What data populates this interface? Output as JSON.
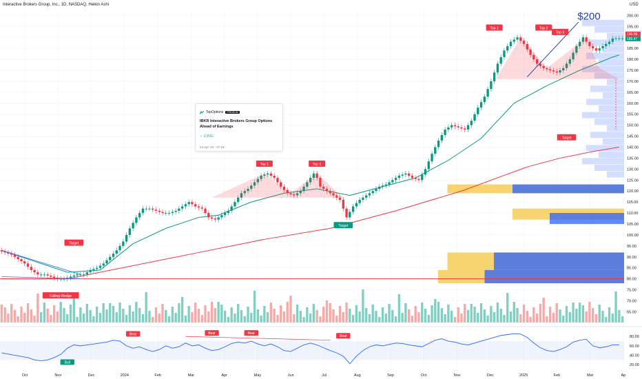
{
  "header": {
    "title": "Interactive Brokers Group, Inc., 1D, NASDAQ, Heikin Ashi",
    "currency": "USD"
  },
  "idea_card": {
    "brand": "TopOptions",
    "badge": "PREMIUM",
    "title": "IBKR Interactive Brokers Group  Options Ahead of Earnings",
    "direction": "LONG",
    "date": "13 Apr '24 · 07:18"
  },
  "chart_data": [
    {
      "type": "candlestick",
      "title": "Interactive Brokers Group, Inc., 1D, NASDAQ, Heikin Ashi",
      "symbol": "IBKR",
      "x_ticks": [
        "Oct",
        "Nov",
        "Dec",
        "2024",
        "Feb",
        "Mar",
        "Apr",
        "May",
        "Jun",
        "Jul",
        "Aug",
        "Sep",
        "Oct",
        "Nov",
        "Dec",
        "2025",
        "Feb",
        "Mar",
        "Ap"
      ],
      "y_ticks": [
        65,
        70,
        75,
        80,
        85,
        90,
        95,
        100,
        105,
        110,
        115,
        120,
        125,
        130,
        135,
        140,
        145,
        150,
        155,
        160,
        165,
        170,
        175,
        180,
        185,
        190,
        195,
        200
      ],
      "ylim": [
        62,
        202
      ],
      "price_path": [
        [
          0,
          93
        ],
        [
          4,
          91
        ],
        [
          8,
          87
        ],
        [
          10,
          84
        ],
        [
          12,
          82
        ],
        [
          14,
          82
        ],
        [
          16,
          81
        ],
        [
          18,
          80
        ],
        [
          20,
          80
        ],
        [
          22,
          81
        ],
        [
          24,
          82
        ],
        [
          26,
          82
        ],
        [
          28,
          84
        ],
        [
          30,
          85
        ],
        [
          32,
          87
        ],
        [
          34,
          90
        ],
        [
          36,
          93
        ],
        [
          38,
          97
        ],
        [
          40,
          103
        ],
        [
          42,
          108
        ],
        [
          44,
          112
        ],
        [
          46,
          112
        ],
        [
          48,
          111
        ],
        [
          50,
          110
        ],
        [
          52,
          110
        ],
        [
          54,
          111
        ],
        [
          56,
          113
        ],
        [
          58,
          115
        ],
        [
          60,
          113
        ],
        [
          62,
          112
        ],
        [
          64,
          108
        ],
        [
          66,
          107
        ],
        [
          68,
          109
        ],
        [
          70,
          111
        ],
        [
          72,
          115
        ],
        [
          74,
          119
        ],
        [
          76,
          121
        ],
        [
          78,
          124
        ],
        [
          80,
          127
        ],
        [
          82,
          128
        ],
        [
          84,
          126
        ],
        [
          86,
          122
        ],
        [
          88,
          119
        ],
        [
          90,
          118
        ],
        [
          92,
          120
        ],
        [
          94,
          124
        ],
        [
          96,
          128
        ],
        [
          97,
          126
        ],
        [
          98,
          122
        ],
        [
          100,
          120
        ],
        [
          102,
          118
        ],
        [
          104,
          116
        ],
        [
          106,
          108
        ],
        [
          108,
          113
        ],
        [
          110,
          116
        ],
        [
          112,
          118
        ],
        [
          114,
          120
        ],
        [
          116,
          122
        ],
        [
          118,
          123
        ],
        [
          120,
          125
        ],
        [
          122,
          127
        ],
        [
          124,
          128
        ],
        [
          126,
          126
        ],
        [
          128,
          125
        ],
        [
          130,
          130
        ],
        [
          132,
          137
        ],
        [
          134,
          143
        ],
        [
          136,
          148
        ],
        [
          138,
          150
        ],
        [
          140,
          149
        ],
        [
          142,
          148
        ],
        [
          144,
          152
        ],
        [
          146,
          158
        ],
        [
          148,
          163
        ],
        [
          150,
          170
        ],
        [
          152,
          178
        ],
        [
          154,
          184
        ],
        [
          156,
          188
        ],
        [
          158,
          190
        ],
        [
          160,
          187
        ],
        [
          162,
          182
        ],
        [
          164,
          178
        ],
        [
          166,
          176
        ],
        [
          168,
          175
        ],
        [
          170,
          174
        ],
        [
          172,
          176
        ],
        [
          174,
          180
        ],
        [
          176,
          186
        ],
        [
          178,
          190
        ],
        [
          180,
          186
        ],
        [
          182,
          184
        ],
        [
          184,
          186
        ],
        [
          186,
          188
        ],
        [
          187,
          189.5
        ]
      ],
      "last_price": 189.5,
      "moving_averages": [
        {
          "color": "#089981",
          "path": [
            [
              0,
              93
            ],
            [
              10,
              88
            ],
            [
              20,
              83
            ],
            [
              30,
              84
            ],
            [
              40,
              96
            ],
            [
              50,
              103
            ],
            [
              60,
              108
            ],
            [
              66,
              109
            ],
            [
              76,
              115
            ],
            [
              86,
              119
            ],
            [
              96,
              121
            ],
            [
              106,
              118
            ],
            [
              116,
              122
            ],
            [
              126,
              126
            ],
            [
              136,
              134
            ],
            [
              146,
              144
            ],
            [
              156,
              160
            ],
            [
              166,
              168
            ],
            [
              176,
              175
            ],
            [
              186,
              181
            ],
            [
              188,
              182
            ]
          ]
        },
        {
          "color": "#f23645",
          "path": [
            [
              0,
              80
            ],
            [
              20,
              80
            ],
            [
              40,
              86
            ],
            [
              60,
              92
            ],
            [
              80,
              98
            ],
            [
              100,
              103
            ],
            [
              120,
              111
            ],
            [
              140,
              120
            ],
            [
              160,
              131
            ],
            [
              170,
              135
            ],
            [
              180,
              138
            ],
            [
              188,
              140
            ]
          ]
        }
      ],
      "volume_profile": [
        {
          "price_from": 119,
          "price_to": 123,
          "width": 0.95,
          "color": "#f5c542"
        },
        {
          "price_from": 119,
          "price_to": 123,
          "width": 0.6,
          "color": "#2962ff"
        },
        {
          "price_from": 107,
          "price_to": 112,
          "width": 0.6,
          "color": "#f5c542"
        },
        {
          "price_from": 105,
          "price_to": 110,
          "width": 0.4,
          "color": "#2962ff"
        },
        {
          "price_from": 84,
          "price_to": 92,
          "width": 0.95,
          "color": "#f5c542"
        },
        {
          "price_from": 84,
          "price_to": 92,
          "width": 0.7,
          "color": "#2962ff"
        },
        {
          "price_from": 78,
          "price_to": 84,
          "width": 1.0,
          "color": "#f5c542"
        },
        {
          "price_from": 78,
          "price_to": 84,
          "width": 0.75,
          "color": "#2962ff"
        }
      ],
      "price_labels": [
        {
          "text": "190.09",
          "color": "#f23645"
        },
        {
          "text": "189.47",
          "color": "#089981"
        }
      ],
      "annotations": [
        {
          "text": "Top 1",
          "color": "#f23645"
        },
        {
          "text": "Top 2",
          "color": "#f23645"
        },
        {
          "text": "Top 1",
          "color": "#f23645"
        },
        {
          "text": "Top 2",
          "color": "#f23645"
        },
        {
          "text": "Top 3",
          "color": "#f23645"
        },
        {
          "text": "Target",
          "color": "#f23645"
        },
        {
          "text": "Target",
          "color": "#f23645"
        },
        {
          "text": "Target",
          "color": "#089981"
        },
        {
          "text": "Falling Wedge",
          "color": "#f23645"
        },
        {
          "text": "$200",
          "color": "#1e3fae"
        }
      ]
    },
    {
      "type": "line",
      "y_ticks": [
        20,
        40,
        60,
        80
      ],
      "ylim": [
        10,
        95
      ],
      "band": [
        30,
        70
      ],
      "path": [
        [
          0,
          45
        ],
        [
          4,
          40
        ],
        [
          8,
          35
        ],
        [
          10,
          30
        ],
        [
          12,
          28
        ],
        [
          14,
          30
        ],
        [
          16,
          35
        ],
        [
          18,
          42
        ],
        [
          20,
          55
        ],
        [
          22,
          62
        ],
        [
          24,
          60
        ],
        [
          26,
          62
        ],
        [
          28,
          64
        ],
        [
          30,
          66
        ],
        [
          32,
          68
        ],
        [
          34,
          72
        ],
        [
          36,
          70
        ],
        [
          38,
          60
        ],
        [
          40,
          55
        ],
        [
          42,
          58
        ],
        [
          44,
          52
        ],
        [
          46,
          48
        ],
        [
          48,
          52
        ],
        [
          50,
          60
        ],
        [
          52,
          55
        ],
        [
          54,
          58
        ],
        [
          56,
          66
        ],
        [
          58,
          60
        ],
        [
          60,
          62
        ],
        [
          62,
          55
        ],
        [
          64,
          50
        ],
        [
          66,
          52
        ],
        [
          68,
          58
        ],
        [
          70,
          65
        ],
        [
          72,
          68
        ],
        [
          74,
          66
        ],
        [
          76,
          70
        ],
        [
          78,
          64
        ],
        [
          80,
          60
        ],
        [
          82,
          64
        ],
        [
          84,
          58
        ],
        [
          86,
          50
        ],
        [
          88,
          48
        ],
        [
          90,
          55
        ],
        [
          92,
          62
        ],
        [
          94,
          66
        ],
        [
          96,
          62
        ],
        [
          98,
          56
        ],
        [
          100,
          50
        ],
        [
          102,
          45
        ],
        [
          104,
          38
        ],
        [
          106,
          22
        ],
        [
          108,
          38
        ],
        [
          110,
          50
        ],
        [
          112,
          58
        ],
        [
          114,
          62
        ],
        [
          116,
          60
        ],
        [
          118,
          63
        ],
        [
          120,
          66
        ],
        [
          122,
          65
        ],
        [
          124,
          62
        ],
        [
          126,
          60
        ],
        [
          128,
          58
        ],
        [
          130,
          65
        ],
        [
          132,
          72
        ],
        [
          134,
          75
        ],
        [
          136,
          70
        ],
        [
          138,
          68
        ],
        [
          140,
          64
        ],
        [
          142,
          62
        ],
        [
          144,
          66
        ],
        [
          146,
          70
        ],
        [
          148,
          74
        ],
        [
          150,
          78
        ],
        [
          152,
          82
        ],
        [
          154,
          84
        ],
        [
          156,
          86
        ],
        [
          158,
          85
        ],
        [
          160,
          78
        ],
        [
          162,
          66
        ],
        [
          164,
          56
        ],
        [
          166,
          50
        ],
        [
          168,
          48
        ],
        [
          170,
          52
        ],
        [
          172,
          58
        ],
        [
          174,
          68
        ],
        [
          176,
          72
        ],
        [
          178,
          74
        ],
        [
          180,
          60
        ],
        [
          182,
          56
        ],
        [
          184,
          58
        ],
        [
          186,
          62
        ],
        [
          188,
          62
        ]
      ],
      "labels": [
        {
          "text": "Bull",
          "color": "#089981"
        },
        {
          "text": "Bear",
          "color": "#f23645"
        },
        {
          "text": "Bear",
          "color": "#f23645"
        },
        {
          "text": "Bear",
          "color": "#f23645"
        },
        {
          "text": "Bear",
          "color": "#f23645"
        }
      ]
    }
  ]
}
